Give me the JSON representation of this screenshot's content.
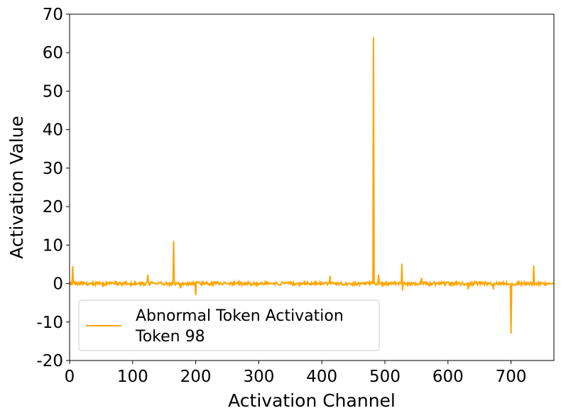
{
  "chart_data": {
    "type": "line",
    "title": "",
    "xlabel": "Activation Channel",
    "ylabel": "Activation Value",
    "xlim": [
      0,
      768
    ],
    "ylim": [
      -20,
      70
    ],
    "xticks": [
      0,
      100,
      200,
      300,
      400,
      500,
      600,
      700
    ],
    "yticks": [
      -20,
      -10,
      0,
      10,
      20,
      30,
      40,
      50,
      60,
      70
    ],
    "xtick_labels": [
      "0",
      "100",
      "200",
      "300",
      "400",
      "500",
      "600",
      "700"
    ],
    "ytick_labels": [
      "-20",
      "-10",
      "0",
      "10",
      "20",
      "30",
      "40",
      "50",
      "60",
      "70"
    ],
    "grid": false,
    "legend": {
      "position": "lower-left",
      "entries": [
        "Abnormal Token Activation",
        "Token 98"
      ]
    },
    "series": [
      {
        "name": "Abnormal Token Activation Token 98",
        "color": "#ffa500",
        "n_channels": 768,
        "baseline_noise_amplitude": 0.5,
        "spikes": [
          {
            "x": 5,
            "y": 4.5
          },
          {
            "x": 124,
            "y": 2.3
          },
          {
            "x": 165,
            "y": 11.1
          },
          {
            "x": 176,
            "y": -1.2
          },
          {
            "x": 200,
            "y": -3.0
          },
          {
            "x": 413,
            "y": 2.0
          },
          {
            "x": 482,
            "y": 64.0
          },
          {
            "x": 490,
            "y": 2.3
          },
          {
            "x": 527,
            "y": 5.2
          },
          {
            "x": 528,
            "y": -1.8
          },
          {
            "x": 558,
            "y": 1.5
          },
          {
            "x": 632,
            "y": -1.5
          },
          {
            "x": 672,
            "y": -1.5
          },
          {
            "x": 700,
            "y": -13.0
          },
          {
            "x": 736,
            "y": 4.7
          }
        ]
      }
    ]
  }
}
